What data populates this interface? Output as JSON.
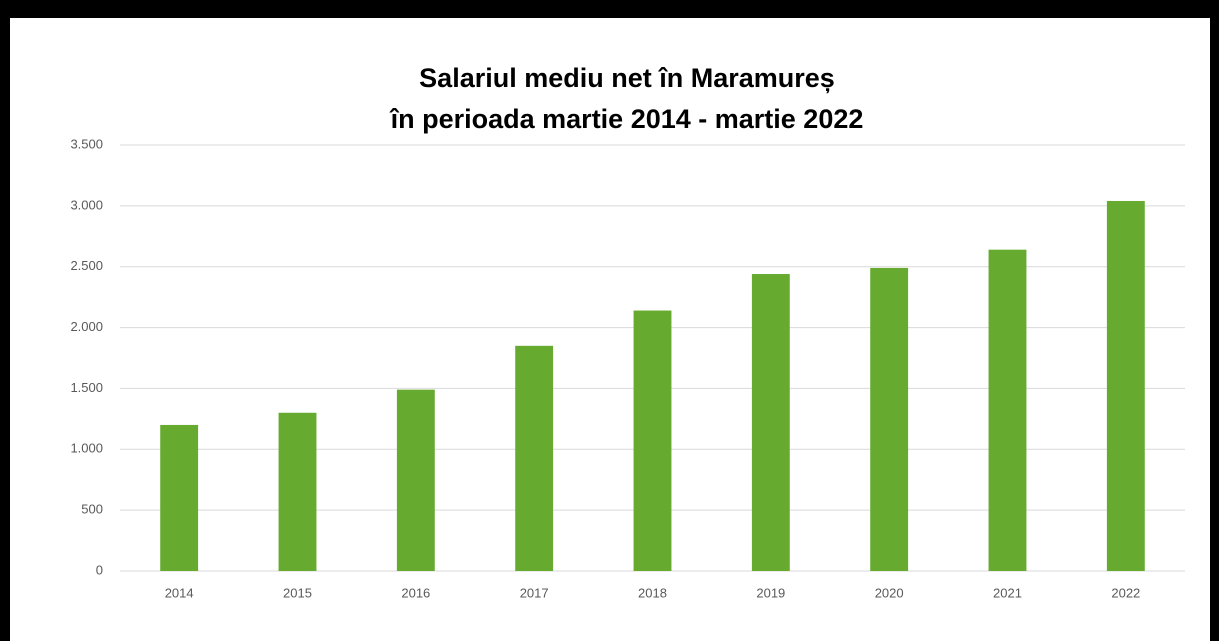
{
  "chart_data": {
    "type": "bar",
    "title": [
      "Salariul mediu net în Maramureș",
      "în perioada martie 2014 - martie 2022"
    ],
    "categories": [
      "2014",
      "2015",
      "2016",
      "2017",
      "2018",
      "2019",
      "2020",
      "2021",
      "2022"
    ],
    "values": [
      1200,
      1300,
      1490,
      1850,
      2140,
      2440,
      2490,
      2640,
      3040
    ],
    "color": "#66ab2f",
    "ylim": [
      0,
      3500
    ],
    "yticks": [
      0,
      500,
      {
        "value": 1000,
        "label": "1.000"
      },
      {
        "value": 1500,
        "label": "1.500"
      },
      {
        "value": 2000,
        "label": "2.000"
      },
      {
        "value": 2500,
        "label": "2.500"
      },
      {
        "value": 3000,
        "label": "3.000"
      },
      {
        "value": 3500,
        "label": "3.500"
      }
    ],
    "grid": true
  }
}
